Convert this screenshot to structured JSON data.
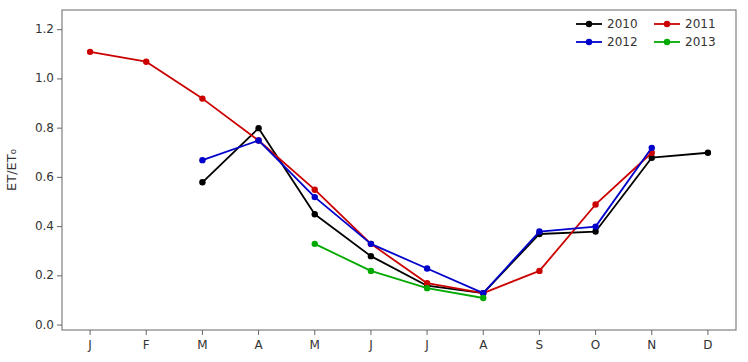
{
  "chart_data": {
    "type": "line",
    "y_label": "ET/ET₀",
    "categories": [
      "J",
      "F",
      "M",
      "A",
      "M",
      "J",
      "J",
      "A",
      "S",
      "O",
      "N",
      "D"
    ],
    "series": [
      {
        "name": "2010",
        "color": "#000000",
        "values": [
          null,
          null,
          0.58,
          0.8,
          0.45,
          0.28,
          0.16,
          0.13,
          0.37,
          0.38,
          0.68,
          0.7
        ]
      },
      {
        "name": "2011",
        "color": "#cc0000",
        "values": [
          1.11,
          1.07,
          0.92,
          0.75,
          0.55,
          0.33,
          0.17,
          0.13,
          0.22,
          0.49,
          0.7,
          null
        ]
      },
      {
        "name": "2012",
        "color": "#0000cc",
        "values": [
          null,
          null,
          0.67,
          0.75,
          0.52,
          0.33,
          0.23,
          0.13,
          0.38,
          0.4,
          0.72,
          null
        ]
      },
      {
        "name": "2013",
        "color": "#00aa00",
        "values": [
          null,
          null,
          null,
          null,
          0.33,
          0.22,
          0.15,
          0.11,
          null,
          null,
          null,
          null
        ]
      }
    ],
    "ylim": [
      -0.02,
      1.28
    ],
    "yticks": [
      {
        "value": 0,
        "label": "0.0"
      },
      0.2,
      0.4,
      0.6,
      0.8,
      {
        "value": 1,
        "label": "1.0"
      },
      1.2
    ],
    "marker": "circle",
    "grid": false,
    "legend": "upper right"
  }
}
